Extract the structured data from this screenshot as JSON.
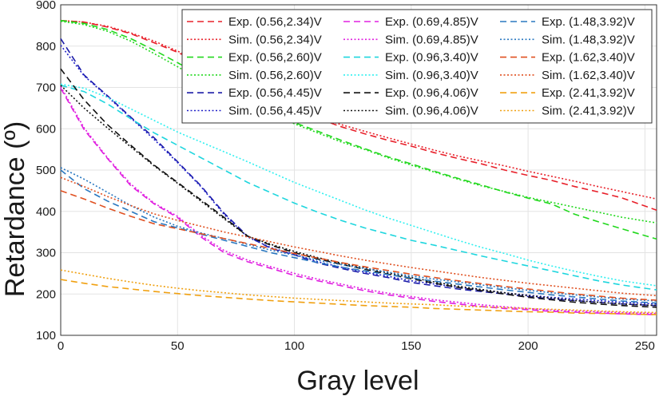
{
  "chart_data": {
    "type": "line",
    "title": "",
    "xlabel": "Gray level",
    "ylabel": "Retardance (º)",
    "xlim": [
      0,
      255
    ],
    "ylim": [
      100,
      900
    ],
    "xticks": [
      0,
      50,
      100,
      150,
      200,
      250
    ],
    "yticks": [
      100,
      200,
      300,
      400,
      500,
      600,
      700,
      800,
      900
    ],
    "grid": true,
    "legend_position": "top-right",
    "legend_columns": 3,
    "x": [
      0,
      10,
      20,
      30,
      40,
      50,
      60,
      70,
      80,
      90,
      100,
      110,
      120,
      130,
      140,
      150,
      160,
      170,
      180,
      190,
      200,
      210,
      220,
      230,
      240,
      255
    ],
    "series": [
      {
        "name": "Exp. (0.56,2.34)V",
        "color": "#e8202a",
        "dash": "dashed",
        "values": [
          862,
          858,
          846,
          830,
          808,
          785,
          758,
          730,
          700,
          672,
          645,
          625,
          605,
          588,
          572,
          558,
          542,
          528,
          515,
          500,
          487,
          475,
          460,
          447,
          433,
          403
        ]
      },
      {
        "name": "Sim. (0.56,2.34)V",
        "color": "#e8202a",
        "dash": "dotted",
        "values": [
          862,
          858,
          848,
          832,
          812,
          788,
          762,
          734,
          704,
          676,
          650,
          628,
          610,
          594,
          578,
          563,
          548,
          534,
          522,
          510,
          497,
          485,
          473,
          460,
          448,
          430
        ]
      },
      {
        "name": "Exp. (0.56,2.60)V",
        "color": "#22d81e",
        "dash": "dashed",
        "values": [
          862,
          855,
          840,
          818,
          790,
          760,
          728,
          695,
          665,
          640,
          615,
          594,
          572,
          552,
          532,
          515,
          497,
          480,
          464,
          447,
          432,
          418,
          393,
          375,
          358,
          333
        ]
      },
      {
        "name": "Sim. (0.56,2.60)V",
        "color": "#22d81e",
        "dash": "dotted",
        "values": [
          860,
          852,
          836,
          812,
          782,
          750,
          718,
          688,
          660,
          635,
          612,
          590,
          568,
          550,
          530,
          512,
          495,
          478,
          462,
          448,
          434,
          422,
          410,
          398,
          386,
          372
        ]
      },
      {
        "name": "Exp. (0.56,4.45)V",
        "color": "#1c1ca8",
        "dash": "dashed",
        "values": [
          818,
          730,
          680,
          628,
          578,
          520,
          462,
          395,
          340,
          310,
          295,
          275,
          262,
          250,
          240,
          228,
          220,
          212,
          206,
          200,
          194,
          188,
          184,
          180,
          176,
          172
        ]
      },
      {
        "name": "Sim. (0.56,4.45)V",
        "color": "#2020c8",
        "dash": "dotted",
        "values": [
          802,
          728,
          678,
          626,
          574,
          518,
          460,
          392,
          338,
          312,
          296,
          278,
          265,
          253,
          243,
          232,
          224,
          216,
          210,
          203,
          197,
          192,
          188,
          184,
          180,
          176
        ]
      },
      {
        "name": "Exp. (0.69,4.85)V",
        "color": "#e020e0",
        "dash": "dashed",
        "values": [
          698,
          598,
          528,
          462,
          418,
          385,
          338,
          300,
          278,
          262,
          245,
          232,
          220,
          208,
          198,
          190,
          182,
          176,
          170,
          165,
          162,
          158,
          156,
          154,
          152,
          150
        ]
      },
      {
        "name": "Sim. (0.69,4.85)V",
        "color": "#e020e0",
        "dash": "dotted",
        "values": [
          702,
          602,
          530,
          466,
          420,
          388,
          342,
          305,
          282,
          266,
          250,
          236,
          224,
          212,
          202,
          194,
          186,
          180,
          174,
          169,
          165,
          161,
          159,
          157,
          155,
          153
        ]
      },
      {
        "name": "Exp. (0.96,3.40)V",
        "color": "#1ed6de",
        "dash": "dashed",
        "values": [
          705,
          690,
          660,
          624,
          590,
          560,
          530,
          500,
          470,
          445,
          420,
          398,
          378,
          360,
          345,
          330,
          318,
          305,
          292,
          280,
          268,
          256,
          244,
          232,
          222,
          210
        ]
      },
      {
        "name": "Sim. (0.96,3.40)V",
        "color": "#30f0f0",
        "dash": "dotted",
        "values": [
          708,
          698,
          676,
          648,
          620,
          592,
          568,
          544,
          520,
          495,
          470,
          448,
          426,
          404,
          384,
          366,
          348,
          330,
          313,
          298,
          282,
          268,
          255,
          243,
          232,
          220
        ]
      },
      {
        "name": "Exp. (0.96,4.06)V",
        "color": "#111111",
        "dash": "dashed",
        "values": [
          745,
          670,
          610,
          560,
          512,
          470,
          428,
          385,
          340,
          318,
          300,
          285,
          272,
          260,
          248,
          237,
          226,
          216,
          208,
          200,
          192,
          186,
          180,
          176,
          172,
          168
        ]
      },
      {
        "name": "Sim. (0.96,4.06)V",
        "color": "#111111",
        "dash": "dotted",
        "values": [
          705,
          650,
          602,
          556,
          510,
          468,
          425,
          382,
          340,
          320,
          303,
          288,
          275,
          263,
          251,
          240,
          229,
          219,
          211,
          203,
          196,
          190,
          184,
          180,
          176,
          172
        ]
      },
      {
        "name": "Exp. (1.48,3.92)V",
        "color": "#2a78c0",
        "dash": "dashed",
        "values": [
          500,
          455,
          425,
          400,
          375,
          360,
          345,
          330,
          315,
          300,
          288,
          276,
          265,
          256,
          247,
          239,
          231,
          224,
          217,
          210,
          204,
          198,
          193,
          188,
          183,
          178
        ]
      },
      {
        "name": "Sim. (1.48,3.92)V",
        "color": "#2a78c0",
        "dash": "dotted",
        "values": [
          506,
          478,
          446,
          414,
          386,
          364,
          348,
          334,
          320,
          306,
          294,
          282,
          271,
          262,
          253,
          244,
          236,
          229,
          222,
          215,
          209,
          203,
          198,
          193,
          188,
          183
        ]
      },
      {
        "name": "Exp. (1.62,3.40)V",
        "color": "#e05020",
        "dash": "dashed",
        "values": [
          450,
          430,
          408,
          388,
          370,
          358,
          346,
          334,
          322,
          310,
          298,
          287,
          276,
          266,
          257,
          248,
          240,
          232,
          225,
          218,
          212,
          206,
          200,
          195,
          190,
          185
        ]
      },
      {
        "name": "Sim. (1.62,3.40)V",
        "color": "#e05020",
        "dash": "dotted",
        "values": [
          482,
          460,
          436,
          414,
          394,
          378,
          364,
          350,
          338,
          326,
          314,
          303,
          292,
          282,
          273,
          264,
          256,
          248,
          240,
          233,
          226,
          220,
          214,
          208,
          202,
          196
        ]
      },
      {
        "name": "Exp. (2.41,3.92)V",
        "color": "#f0a010",
        "dash": "dashed",
        "values": [
          235,
          226,
          218,
          212,
          206,
          201,
          196,
          192,
          188,
          184,
          181,
          178,
          175,
          172,
          170,
          168,
          165,
          163,
          161,
          159,
          157,
          156,
          154,
          153,
          152,
          150
        ]
      },
      {
        "name": "Sim. (2.41,3.92)V",
        "color": "#f0a010",
        "dash": "dotted",
        "values": [
          258,
          248,
          238,
          229,
          221,
          214,
          208,
          203,
          198,
          194,
          190,
          187,
          184,
          181,
          178,
          176,
          174,
          171,
          169,
          167,
          165,
          163,
          161,
          159,
          157,
          155
        ]
      }
    ]
  }
}
